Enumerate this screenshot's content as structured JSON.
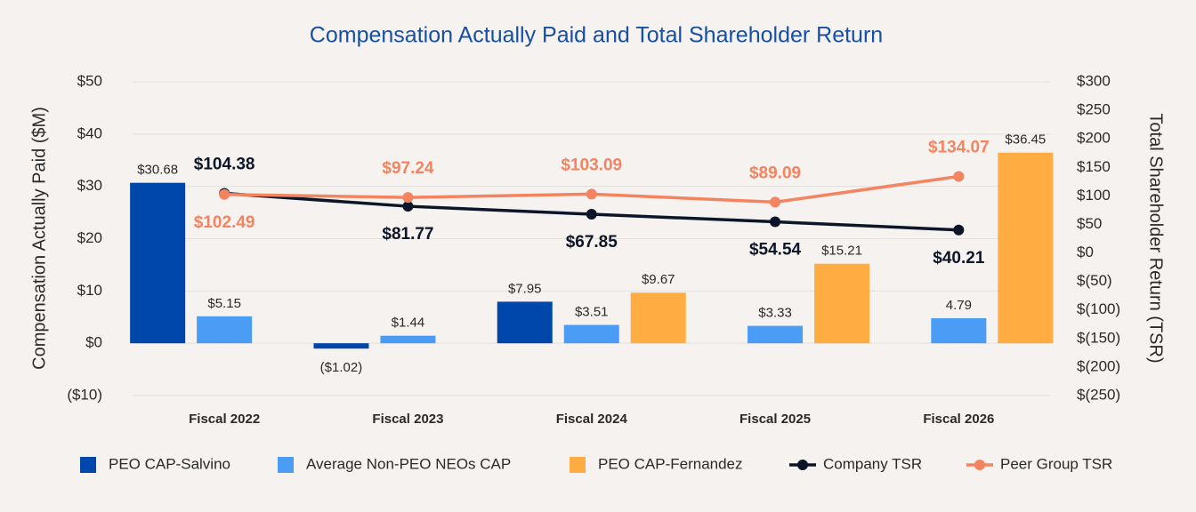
{
  "chart_data": {
    "type": "bar",
    "title": "Compensation Actually Paid and Total Shareholder Return",
    "y_label": "Compensation Actually Paid ($M)",
    "y2_label": "Total Shareholder Return (TSR)",
    "categories": [
      "Fiscal 2022",
      "Fiscal 2023",
      "Fiscal 2024",
      "Fiscal 2025",
      "Fiscal 2026"
    ],
    "ylim": [
      -10,
      50
    ],
    "yticks": [
      {
        "value": -10,
        "label": "($10)"
      },
      {
        "value": 0,
        "label": "$0"
      },
      {
        "value": 10,
        "label": "$10"
      },
      {
        "value": 20,
        "label": "$20"
      },
      {
        "value": 30,
        "label": "$30"
      },
      {
        "value": 40,
        "label": "$40"
      },
      {
        "value": 50,
        "label": "$50"
      }
    ],
    "y2lim": [
      -250,
      300
    ],
    "y2ticks": [
      {
        "value": -250,
        "label": "$(250)"
      },
      {
        "value": -200,
        "label": "$(200)"
      },
      {
        "value": -150,
        "label": "$(150)"
      },
      {
        "value": -100,
        "label": "$(100)"
      },
      {
        "value": -50,
        "label": "$(50)"
      },
      {
        "value": 0,
        "label": "$0"
      },
      {
        "value": 50,
        "label": "$50"
      },
      {
        "value": 100,
        "label": "$100"
      },
      {
        "value": 150,
        "label": "$150"
      },
      {
        "value": 200,
        "label": "$200"
      },
      {
        "value": 250,
        "label": "$250"
      },
      {
        "value": 300,
        "label": "$300"
      }
    ],
    "grid": true,
    "legend": "bottom",
    "series": [
      {
        "name": "PEO CAP-Salvino",
        "color": "#0047ab",
        "values": [
          30.68,
          -1.02,
          7.95,
          null,
          null
        ],
        "value_labels": [
          "$30.68",
          "($1.02)",
          "$7.95",
          null,
          null
        ]
      },
      {
        "name": "Average Non-PEO NEOs CAP",
        "color": "#4b9cf5",
        "values": [
          5.15,
          1.44,
          3.51,
          3.33,
          4.79
        ],
        "value_labels": [
          "$5.15",
          "$1.44",
          "$3.51",
          "$3.33",
          "4.79"
        ]
      },
      {
        "name": "PEO CAP-Fernandez",
        "color": "#ffad42",
        "values": [
          null,
          null,
          9.67,
          15.21,
          36.45
        ],
        "value_labels": [
          null,
          null,
          "$9.67",
          "$15.21",
          "$36.45"
        ]
      },
      {
        "name": "Company TSR",
        "type": "line",
        "axis": "y2",
        "color": "#0d1628",
        "values": [
          104.38,
          81.77,
          67.85,
          54.54,
          40.21
        ],
        "value_labels": [
          "$104.38",
          "$81.77",
          "$67.85",
          "$54.54",
          "$40.21"
        ]
      },
      {
        "name": "Peer Group TSR",
        "type": "line",
        "axis": "y2",
        "color": "#f4845f",
        "values": [
          102.49,
          97.24,
          103.09,
          89.09,
          134.07
        ],
        "value_labels": [
          "$102.49",
          "$97.24",
          "$103.09",
          "$89.09",
          "$134.07"
        ]
      }
    ]
  }
}
